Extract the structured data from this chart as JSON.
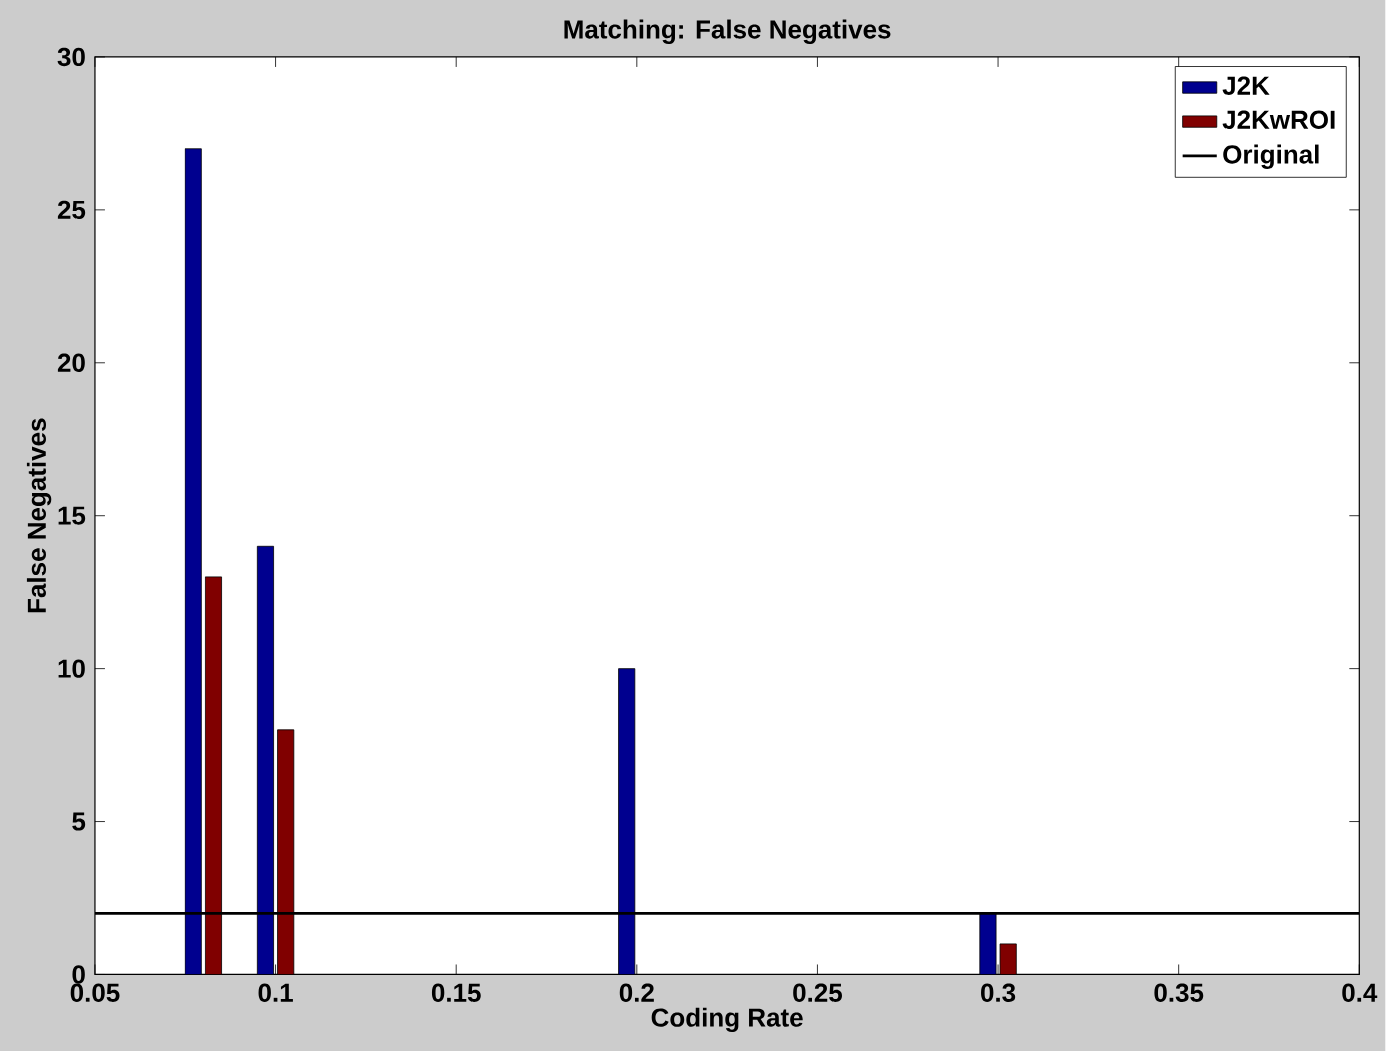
{
  "chart_data": {
    "type": "bar",
    "title": "Matching: False Negatives",
    "xlabel": "Coding Rate",
    "ylabel": "False Negatives",
    "x": [
      0.08,
      0.1,
      0.2,
      0.3
    ],
    "series": [
      {
        "name": "J2K",
        "color": "#00008f",
        "values": [
          27,
          14,
          10,
          2
        ]
      },
      {
        "name": "J2KwROI",
        "color": "#800000",
        "values": [
          13,
          8,
          null,
          1
        ]
      },
      {
        "name": "Original",
        "type": "line",
        "color": "#000000",
        "x": [
          0.05,
          0.4
        ],
        "values": [
          2,
          2
        ]
      }
    ],
    "xlim": [
      0.05,
      0.4
    ],
    "xticks": [
      0.05,
      0.1,
      0.15,
      0.2,
      0.25,
      0.3,
      0.35,
      0.4
    ],
    "ylim": [
      0,
      30
    ],
    "yticks": [
      0,
      5,
      10,
      15,
      20,
      25,
      30
    ],
    "legend": "top right",
    "grid": false
  }
}
